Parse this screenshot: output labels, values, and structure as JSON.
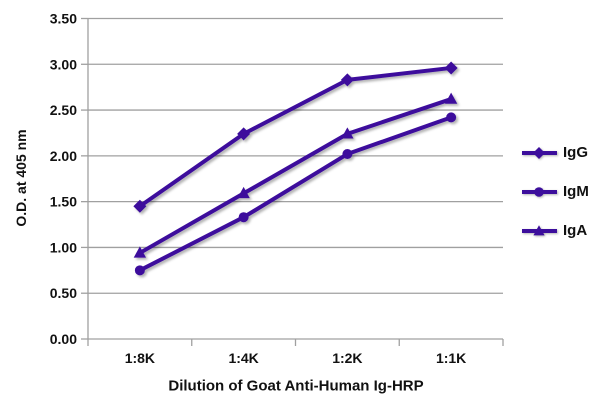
{
  "chart_data": {
    "type": "line",
    "title": "",
    "xlabel": "Dilution of Goat Anti-Human Ig-HRP",
    "ylabel": "O.D. at 405 nm",
    "categories": [
      "1:8K",
      "1:4K",
      "1:2K",
      "1:1K"
    ],
    "series": [
      {
        "name": "IgG",
        "marker": "diamond",
        "values": [
          1.45,
          2.24,
          2.83,
          2.96
        ]
      },
      {
        "name": "IgM",
        "marker": "circle",
        "values": [
          0.75,
          1.33,
          2.02,
          2.42
        ]
      },
      {
        "name": "IgA",
        "marker": "triangle",
        "values": [
          0.94,
          1.59,
          2.24,
          2.62
        ]
      }
    ],
    "ylim": [
      0,
      3.5
    ],
    "ytick_step": 0.5,
    "ytick_labels": [
      "0.00",
      "0.50",
      "1.00",
      "1.50",
      "2.00",
      "2.50",
      "3.00",
      "3.50"
    ],
    "grid": "horizontal",
    "legend_position": "right",
    "line_color": "#3C0E9C",
    "gridline_color": "#A0A0A0",
    "axis_color": "#A0A0A0",
    "text_color": "#111111",
    "background": "#FFFFFF"
  }
}
